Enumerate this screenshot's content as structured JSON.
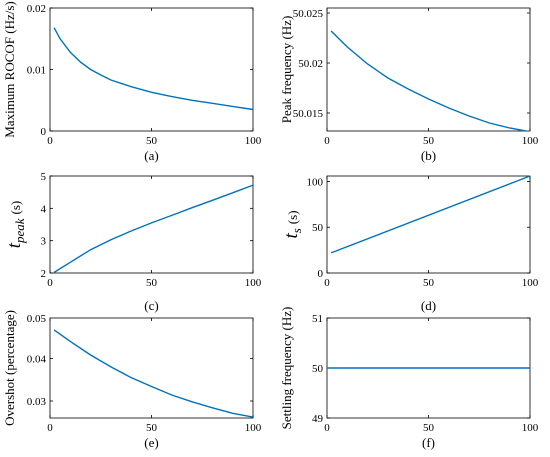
{
  "colors": {
    "series": "#0072BD",
    "axis": "#000000"
  },
  "chart_data": [
    {
      "type": "line",
      "panel": "a",
      "caption": "(a)",
      "ylabel": "Maximum ROCOF (Hz/s)",
      "xlim": [
        0,
        100
      ],
      "ylim": [
        0,
        0.02
      ],
      "xticks": [
        0,
        50,
        100
      ],
      "xtick_labels": [
        "0",
        "50",
        "100"
      ],
      "yticks": [
        0,
        0.01,
        0.02
      ],
      "ytick_labels": [
        "0",
        "0.01",
        "0.02"
      ],
      "x": [
        2,
        5,
        10,
        15,
        20,
        25,
        30,
        40,
        50,
        60,
        70,
        80,
        90,
        100
      ],
      "values": [
        0.0168,
        0.015,
        0.0128,
        0.0112,
        0.01,
        0.0091,
        0.0083,
        0.0072,
        0.0063,
        0.0056,
        0.005,
        0.0045,
        0.004,
        0.0035
      ]
    },
    {
      "type": "line",
      "panel": "b",
      "caption": "(b)",
      "ylabel": "Peak frequency (Hz)",
      "xlim": [
        0,
        100
      ],
      "ylim": [
        50.0132,
        50.0255
      ],
      "xticks": [
        0,
        50,
        100
      ],
      "xtick_labels": [
        "0",
        "50",
        "100"
      ],
      "yticks": [
        50.015,
        50.02,
        50.025
      ],
      "ytick_labels": [
        "50.015",
        "50.02",
        "50.025"
      ],
      "x": [
        2,
        10,
        20,
        30,
        40,
        50,
        60,
        70,
        80,
        90,
        98
      ],
      "values": [
        50.0232,
        50.0216,
        50.0199,
        50.0185,
        50.0174,
        50.0164,
        50.0155,
        50.0147,
        50.014,
        50.0135,
        50.0132
      ]
    },
    {
      "type": "line",
      "panel": "c",
      "caption": "(c)",
      "ylabel_main": "t",
      "ylabel_sub": "peak",
      "ylabel_unit": "(s)",
      "xlim": [
        0,
        100
      ],
      "ylim": [
        2,
        5
      ],
      "xticks": [
        0,
        50,
        100
      ],
      "xtick_labels": [
        "0",
        "50",
        "100"
      ],
      "yticks": [
        2,
        3,
        4,
        5
      ],
      "ytick_labels": [
        "2",
        "3",
        "4",
        "5"
      ],
      "x": [
        2,
        10,
        20,
        30,
        40,
        50,
        60,
        70,
        80,
        90,
        100
      ],
      "values": [
        2.02,
        2.33,
        2.72,
        3.03,
        3.3,
        3.55,
        3.78,
        4.02,
        4.25,
        4.48,
        4.72
      ]
    },
    {
      "type": "line",
      "panel": "d",
      "caption": "(d)",
      "ylabel_main": "t",
      "ylabel_sub": "s",
      "ylabel_unit": "(s)",
      "xlim": [
        0,
        100
      ],
      "ylim": [
        0,
        106
      ],
      "xticks": [
        0,
        50,
        100
      ],
      "xtick_labels": [
        "0",
        "50",
        "100"
      ],
      "yticks": [
        0,
        50,
        100
      ],
      "ytick_labels": [
        "0",
        "50",
        "100"
      ],
      "x": [
        2,
        100
      ],
      "values": [
        22,
        106
      ]
    },
    {
      "type": "line",
      "panel": "e",
      "caption": "(e)",
      "ylabel": "Overshot (percentage)",
      "xlim": [
        0,
        100
      ],
      "ylim": [
        0.026,
        0.0495
      ],
      "xticks": [
        0,
        50,
        100
      ],
      "xtick_labels": [
        "0",
        "50",
        "100"
      ],
      "yticks": [
        0.03,
        0.04
      ],
      "ytick_labels": [
        "0.03",
        "0.04"
      ],
      "extra_top_tick": 0.05,
      "extra_top_tick_label": "0.05",
      "x": [
        2,
        10,
        20,
        30,
        40,
        50,
        60,
        70,
        80,
        90,
        100
      ],
      "values": [
        0.0467,
        0.044,
        0.0408,
        0.038,
        0.0355,
        0.0334,
        0.0314,
        0.0298,
        0.0284,
        0.0271,
        0.0262
      ]
    },
    {
      "type": "line",
      "panel": "f",
      "caption": "(f)",
      "ylabel": "Settling frequency (Hz)",
      "xlim": [
        0,
        100
      ],
      "ylim": [
        49,
        51
      ],
      "xticks": [
        0,
        50,
        100
      ],
      "xtick_labels": [
        "0",
        "50",
        "100"
      ],
      "yticks": [
        49,
        50,
        51
      ],
      "ytick_labels": [
        "49",
        "50",
        "51"
      ],
      "x": [
        0,
        100
      ],
      "values": [
        50,
        50
      ]
    }
  ]
}
